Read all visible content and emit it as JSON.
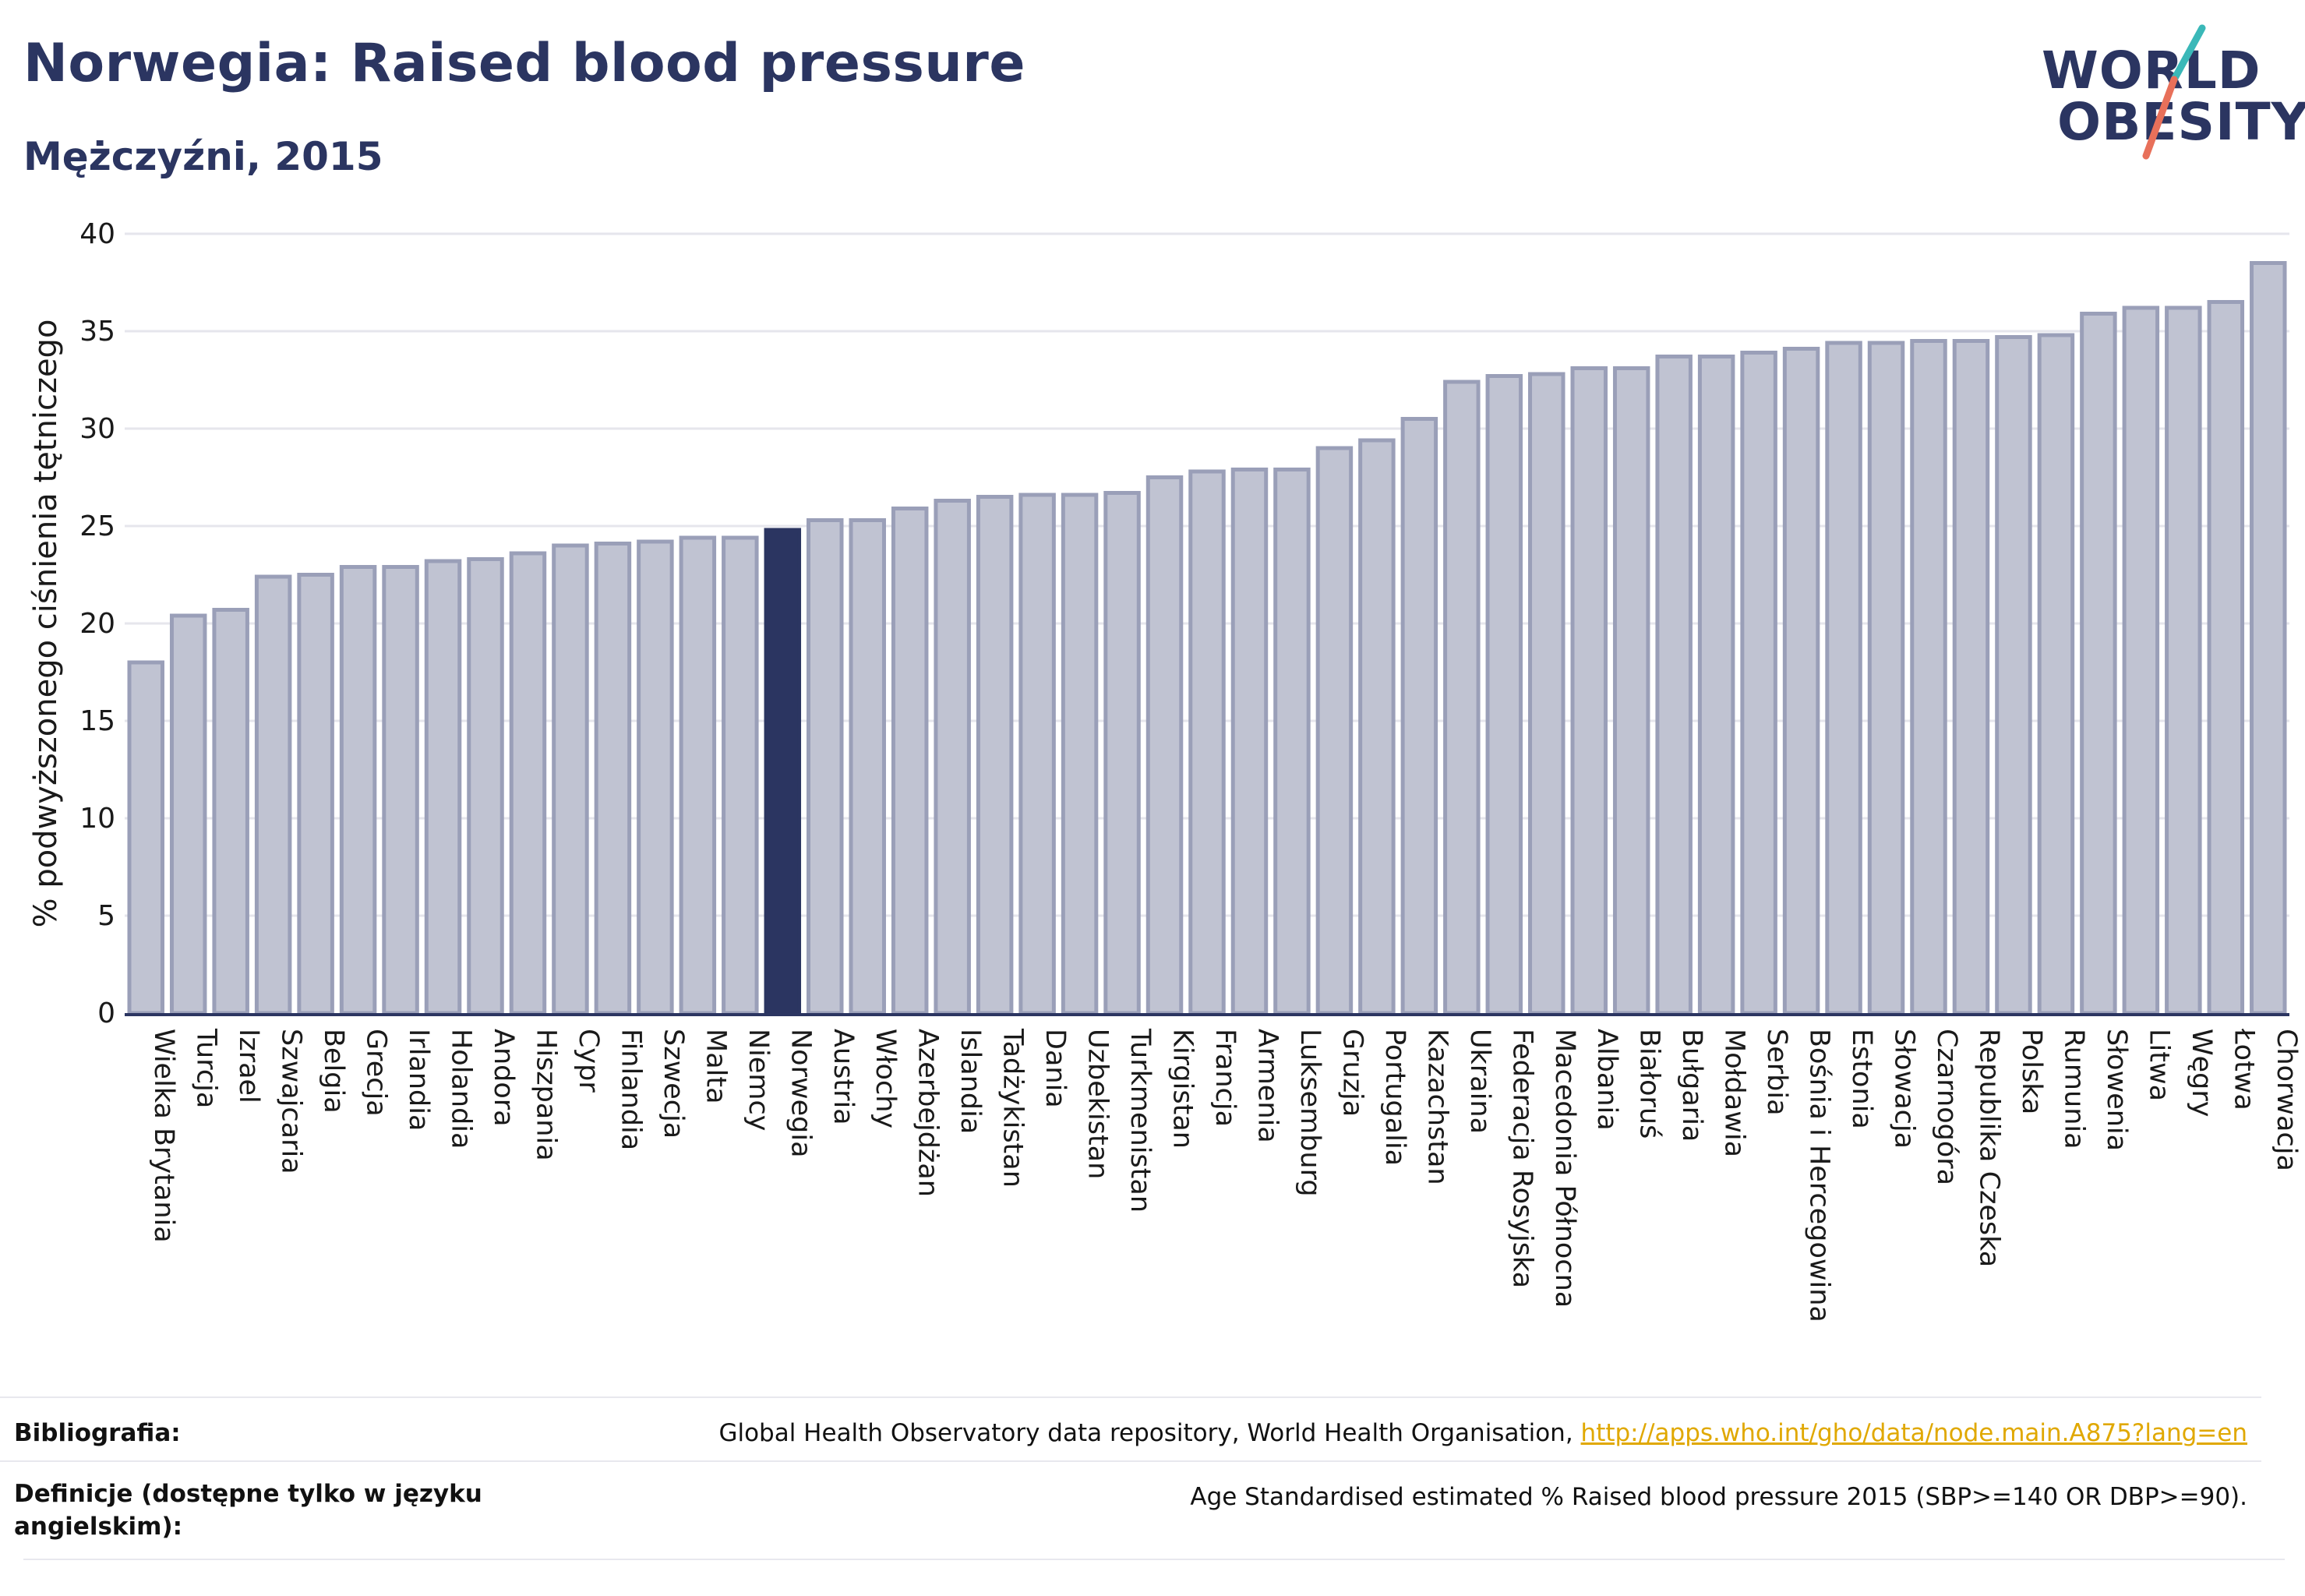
{
  "header": {
    "title": "Norwegia: Raised blood pressure",
    "subtitle": "Mężczyźni, 2015"
  },
  "logo": {
    "line1": "WORLD",
    "line2": "OBESITY",
    "accent_teal": "#3ab8b8",
    "accent_coral": "#e8705a"
  },
  "colors": {
    "bar": "#c0c3d2",
    "bar_border": "#9a9fb8",
    "highlight": "#2b3561",
    "grid": "#e6e6ec",
    "axis": "#2b3561"
  },
  "chart_data": {
    "type": "bar",
    "title": "Norwegia: Raised blood pressure",
    "subtitle": "Mężczyźni, 2015",
    "xlabel": "",
    "ylabel": "% podwyższonego ciśnienia tętniczego",
    "ylim": [
      0,
      40
    ],
    "yticks": [
      0,
      5,
      10,
      15,
      20,
      25,
      30,
      35,
      40
    ],
    "grid": true,
    "highlight": "Norwegia",
    "categories": [
      "Wielka Brytania",
      "Turcja",
      "Izrael",
      "Szwajcaria",
      "Belgia",
      "Grecja",
      "Irlandia",
      "Holandia",
      "Andora",
      "Hiszpania",
      "Cypr",
      "Finlandia",
      "Szwecja",
      "Malta",
      "Niemcy",
      "Norwegia",
      "Austria",
      "Włochy",
      "Azerbejdżan",
      "Islandia",
      "Tadżykistan",
      "Dania",
      "Uzbekistan",
      "Turkmenistan",
      "Kirgistan",
      "Francja",
      "Armenia",
      "Luksemburg",
      "Gruzja",
      "Portugalia",
      "Kazachstan",
      "Ukraina",
      "Federacja Rosyjska",
      "Macedonia Północna",
      "Albania",
      "Białoruś",
      "Bułgaria",
      "Mołdawia",
      "Serbia",
      "Bośnia i Hercegowina",
      "Estonia",
      "Słowacja",
      "Czarnogóra",
      "Republika Czeska",
      "Polska",
      "Rumunia",
      "Słowenia",
      "Litwa",
      "Węgry",
      "Łotwa",
      "Chorwacja"
    ],
    "values": [
      18.0,
      20.4,
      20.7,
      22.4,
      22.5,
      22.9,
      22.9,
      23.2,
      23.3,
      23.6,
      24.0,
      24.1,
      24.2,
      24.4,
      24.4,
      24.8,
      25.3,
      25.3,
      25.9,
      26.3,
      26.5,
      26.6,
      26.6,
      26.7,
      27.5,
      27.8,
      27.9,
      27.9,
      29.0,
      29.4,
      30.5,
      32.4,
      32.7,
      32.8,
      33.1,
      33.1,
      33.7,
      33.7,
      33.9,
      34.1,
      34.4,
      34.4,
      34.5,
      34.5,
      34.7,
      34.8,
      35.9,
      36.2,
      36.2,
      36.5,
      38.5
    ]
  },
  "footer": {
    "bibliography_label": "Bibliografia:",
    "bibliography_text": "Global Health Observatory data repository, World Health Organisation, ",
    "bibliography_link": "http://apps.who.int/gho/data/node.main.A875?lang=en",
    "definition_label": "Definicje (dostępne tylko w języku angielskim):",
    "definition_text": "Age Standardised estimated % Raised blood pressure 2015 (SBP>=140 OR DBP>=90)."
  }
}
